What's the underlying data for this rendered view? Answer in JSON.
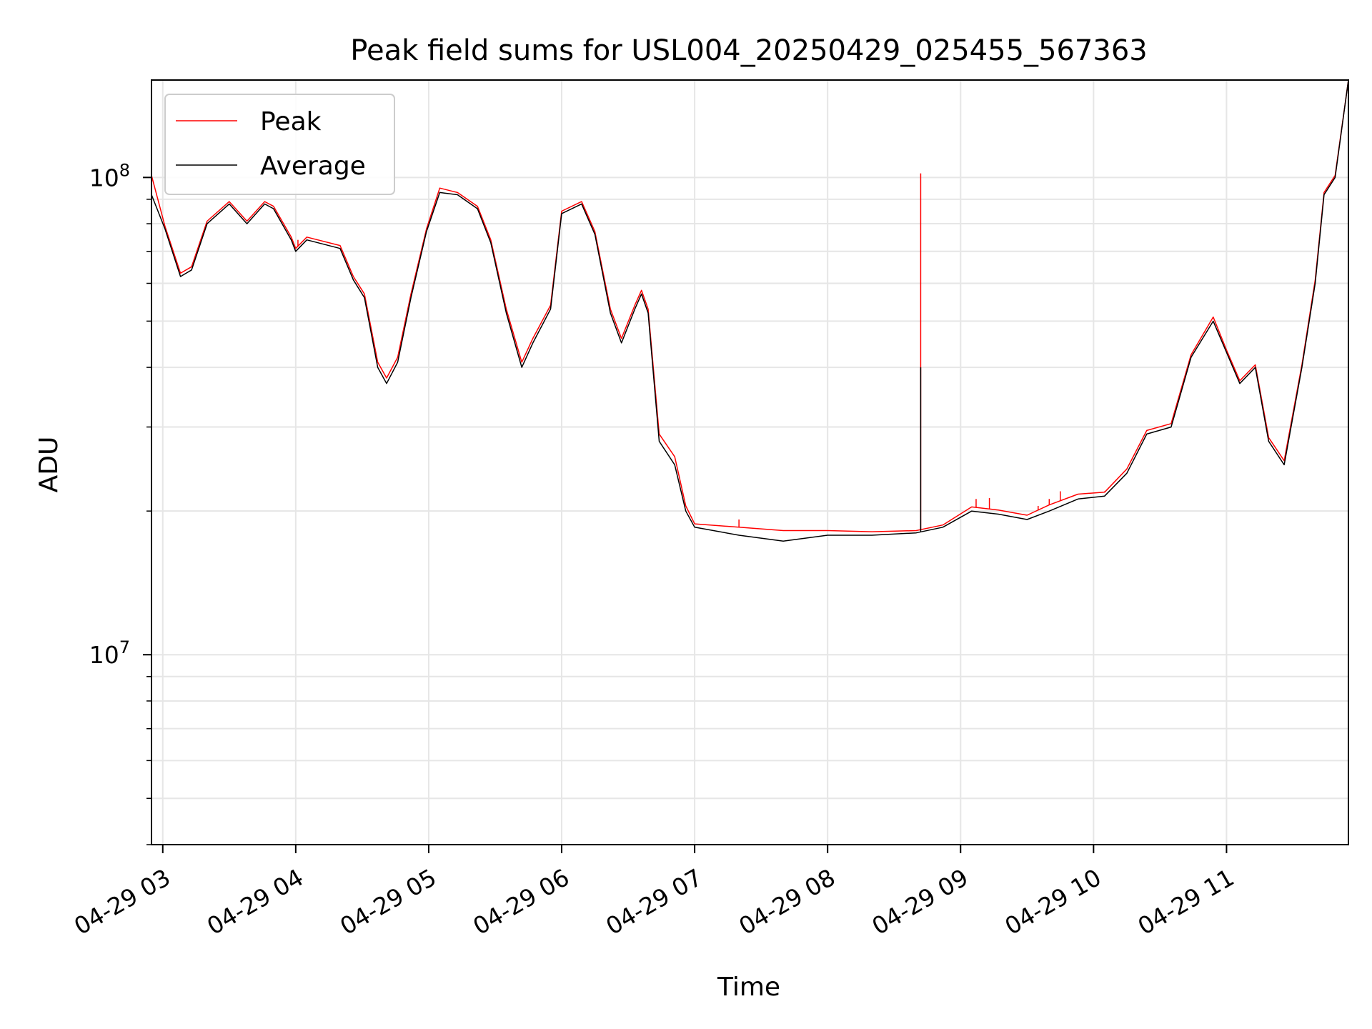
{
  "chart_data": {
    "type": "line",
    "title": "Peak field sums for USL004_20250429_025455_567363",
    "xlabel": "Time",
    "ylabel": "ADU",
    "yscale": "log",
    "xlim": [
      "2025-04-29T02:54:55",
      "2025-04-29T11:55:00"
    ],
    "ylim": [
      4000000,
      160000000
    ],
    "x_ticks": [
      "04-29 03",
      "04-29 04",
      "04-29 05",
      "04-29 06",
      "04-29 07",
      "04-29 08",
      "04-29 09",
      "04-29 10",
      "04-29 11"
    ],
    "x_tick_times": [
      "2025-04-29T03:00",
      "2025-04-29T04:00",
      "2025-04-29T05:00",
      "2025-04-29T06:00",
      "2025-04-29T07:00",
      "2025-04-29T08:00",
      "2025-04-29T09:00",
      "2025-04-29T10:00",
      "2025-04-29T11:00"
    ],
    "y_major_ticks": [
      {
        "value": 10000000,
        "base": "10",
        "exp": "7"
      },
      {
        "value": 100000000,
        "base": "10",
        "exp": "8"
      }
    ],
    "y_minor_ticks": [
      4000000,
      5000000,
      6000000,
      7000000,
      8000000,
      9000000,
      20000000,
      30000000,
      40000000,
      50000000,
      60000000,
      70000000,
      80000000,
      90000000
    ],
    "grid": true,
    "legend_position": "upper-left",
    "series": [
      {
        "name": "Average",
        "color": "#000000",
        "x": [
          "2025-04-29T02:54:55",
          "2025-04-29T03:01",
          "2025-04-29T03:08",
          "2025-04-29T03:13",
          "2025-04-29T03:20",
          "2025-04-29T03:30",
          "2025-04-29T03:38",
          "2025-04-29T03:46",
          "2025-04-29T03:50",
          "2025-04-29T03:58",
          "2025-04-29T04:00",
          "2025-04-29T04:05",
          "2025-04-29T04:20",
          "2025-04-29T04:26",
          "2025-04-29T04:31",
          "2025-04-29T04:37",
          "2025-04-29T04:41",
          "2025-04-29T04:46",
          "2025-04-29T04:52",
          "2025-04-29T04:59",
          "2025-04-29T05:05",
          "2025-04-29T05:13",
          "2025-04-29T05:22",
          "2025-04-29T05:28",
          "2025-04-29T05:35",
          "2025-04-29T05:42",
          "2025-04-29T05:47",
          "2025-04-29T05:55",
          "2025-04-29T06:00",
          "2025-04-29T06:09",
          "2025-04-29T06:15",
          "2025-04-29T06:22",
          "2025-04-29T06:27",
          "2025-04-29T06:33",
          "2025-04-29T06:36",
          "2025-04-29T06:39",
          "2025-04-29T06:44",
          "2025-04-29T06:51",
          "2025-04-29T06:56",
          "2025-04-29T07:00",
          "2025-04-29T07:20",
          "2025-04-29T07:40",
          "2025-04-29T08:00",
          "2025-04-29T08:20",
          "2025-04-29T08:40",
          "2025-04-29T08:52",
          "2025-04-29T09:05",
          "2025-04-29T09:17",
          "2025-04-29T09:30",
          "2025-04-29T09:40",
          "2025-04-29T09:53",
          "2025-04-29T10:05",
          "2025-04-29T10:15",
          "2025-04-29T10:24",
          "2025-04-29T10:35",
          "2025-04-29T10:44",
          "2025-04-29T10:54",
          "2025-04-29T11:00",
          "2025-04-29T11:06",
          "2025-04-29T11:13",
          "2025-04-29T11:19",
          "2025-04-29T11:26",
          "2025-04-29T11:34",
          "2025-04-29T11:40",
          "2025-04-29T11:44",
          "2025-04-29T11:49",
          "2025-04-29T11:55"
        ],
        "values": [
          92000000,
          78000000,
          62000000,
          64000000,
          80000000,
          88000000,
          80000000,
          88000000,
          86000000,
          74000000,
          70000000,
          74000000,
          71000000,
          61000000,
          56000000,
          40000000,
          37000000,
          41000000,
          56000000,
          77000000,
          93000000,
          92000000,
          86000000,
          73000000,
          52000000,
          40000000,
          45000000,
          53000000,
          84000000,
          88000000,
          76000000,
          52000000,
          45000000,
          53000000,
          57000000,
          52000000,
          28000000,
          25000000,
          20000000,
          18500000,
          17800000,
          17300000,
          17800000,
          17800000,
          18000000,
          18500000,
          20000000,
          19700000,
          19200000,
          20000000,
          21200000,
          21500000,
          24000000,
          29000000,
          30000000,
          42000000,
          50000000,
          43000000,
          37000000,
          40000000,
          28000000,
          25000000,
          40000000,
          60000000,
          92000000,
          100000000,
          160000000
        ]
      },
      {
        "name": "Peak",
        "color": "#ff0000",
        "x": [
          "2025-04-29T02:54:55",
          "2025-04-29T03:01",
          "2025-04-29T03:08",
          "2025-04-29T03:13",
          "2025-04-29T03:20",
          "2025-04-29T03:30",
          "2025-04-29T03:38",
          "2025-04-29T03:46",
          "2025-04-29T03:50",
          "2025-04-29T03:58",
          "2025-04-29T04:00",
          "2025-04-29T04:05",
          "2025-04-29T04:20",
          "2025-04-29T04:26",
          "2025-04-29T04:31",
          "2025-04-29T04:37",
          "2025-04-29T04:41",
          "2025-04-29T04:46",
          "2025-04-29T04:52",
          "2025-04-29T04:59",
          "2025-04-29T05:05",
          "2025-04-29T05:13",
          "2025-04-29T05:22",
          "2025-04-29T05:28",
          "2025-04-29T05:35",
          "2025-04-29T05:42",
          "2025-04-29T05:47",
          "2025-04-29T05:55",
          "2025-04-29T06:00",
          "2025-04-29T06:09",
          "2025-04-29T06:15",
          "2025-04-29T06:22",
          "2025-04-29T06:27",
          "2025-04-29T06:33",
          "2025-04-29T06:36",
          "2025-04-29T06:39",
          "2025-04-29T06:44",
          "2025-04-29T06:51",
          "2025-04-29T06:56",
          "2025-04-29T07:00",
          "2025-04-29T07:20",
          "2025-04-29T07:40",
          "2025-04-29T08:00",
          "2025-04-29T08:20",
          "2025-04-29T08:40",
          "2025-04-29T08:52",
          "2025-04-29T09:05",
          "2025-04-29T09:17",
          "2025-04-29T09:30",
          "2025-04-29T09:40",
          "2025-04-29T09:53",
          "2025-04-29T10:05",
          "2025-04-29T10:15",
          "2025-04-29T10:24",
          "2025-04-29T10:35",
          "2025-04-29T10:44",
          "2025-04-29T10:54",
          "2025-04-29T11:00",
          "2025-04-29T11:06",
          "2025-04-29T11:13",
          "2025-04-29T11:19",
          "2025-04-29T11:26",
          "2025-04-29T11:34",
          "2025-04-29T11:40",
          "2025-04-29T11:44",
          "2025-04-29T11:49",
          "2025-04-29T11:55"
        ],
        "values": [
          101000000,
          79000000,
          63000000,
          65000000,
          81000000,
          89000000,
          81000000,
          89000000,
          87000000,
          75000000,
          71000000,
          75000000,
          72000000,
          62000000,
          57000000,
          41000000,
          38000000,
          42000000,
          57000000,
          78000000,
          95000000,
          93000000,
          87000000,
          74000000,
          53000000,
          41000000,
          46000000,
          54000000,
          85000000,
          89000000,
          77000000,
          53000000,
          46000000,
          54000000,
          58000000,
          53000000,
          29000000,
          26000000,
          20500000,
          18800000,
          18500000,
          18200000,
          18200000,
          18100000,
          18200000,
          18700000,
          20400000,
          20100000,
          19600000,
          20600000,
          21700000,
          21900000,
          24500000,
          29500000,
          30500000,
          42500000,
          51000000,
          43500000,
          37500000,
          40500000,
          28500000,
          25500000,
          40500000,
          61000000,
          93000000,
          101000000,
          160000000
        ],
        "spikes": [
          {
            "x": "2025-04-29T08:42",
            "value": 102000000
          },
          {
            "x": "2025-04-29T04:01",
            "value": 74000000
          },
          {
            "x": "2025-04-29T07:20",
            "value": 19200000
          },
          {
            "x": "2025-04-29T09:07",
            "value": 21200000
          },
          {
            "x": "2025-04-29T09:13",
            "value": 21300000
          },
          {
            "x": "2025-04-29T09:35",
            "value": 20500000
          },
          {
            "x": "2025-04-29T09:40",
            "value": 21200000
          },
          {
            "x": "2025-04-29T09:45",
            "value": 22000000
          },
          {
            "x": "2025-04-29T10:05",
            "value": 22000000
          }
        ]
      }
    ],
    "average_spike": {
      "x": "2025-04-29T08:42",
      "value": 40000000
    }
  }
}
